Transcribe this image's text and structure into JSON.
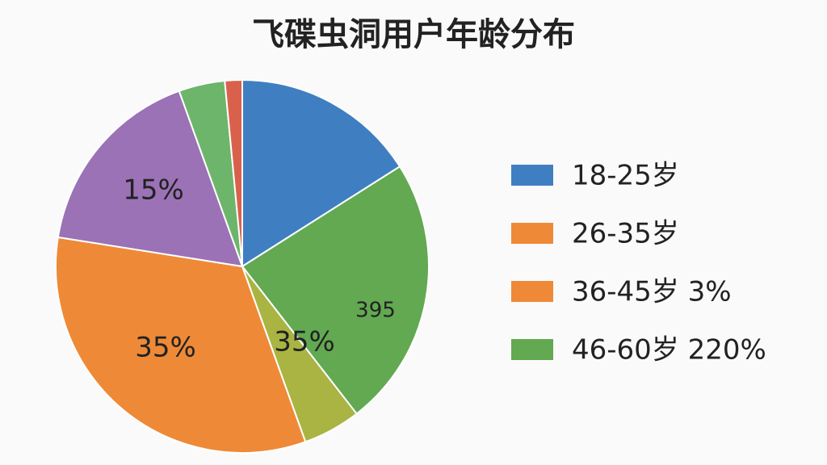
{
  "chart_data": {
    "type": "pie",
    "title": "飞碟虫洞用户年龄分布",
    "values": [
      16,
      23.5,
      5,
      33,
      17,
      4,
      1.5
    ],
    "colors": [
      "#3f7fc1",
      "#62a951",
      "#a9b443",
      "#ee8a37",
      "#9b72b5",
      "#6db56a",
      "#d9614c"
    ],
    "annotations": [
      "15%",
      "35%",
      "35%",
      "395"
    ],
    "legend": [
      {
        "label": "18-25岁",
        "color": "#3f7fc1"
      },
      {
        "label": "26-35岁",
        "color": "#ee8a37"
      },
      {
        "label": "36-45岁 3%",
        "color": "#ee8a37"
      },
      {
        "label": "46-60岁 220%",
        "color": "#62a951"
      }
    ]
  }
}
